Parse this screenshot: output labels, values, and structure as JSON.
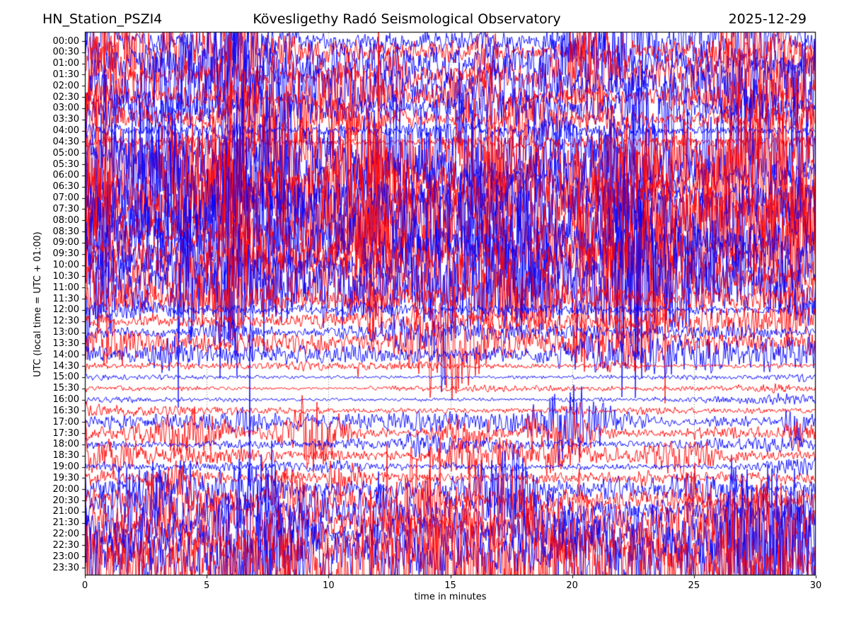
{
  "chart_data": {
    "type": "line",
    "subtype": "helicorder-dayplot",
    "title_left": "HN_Station_PSZI4",
    "title_center": "Kövesligethy Radó Seismological Observatory",
    "title_right": "2025-12-29",
    "xlabel": "time in minutes",
    "ylabel": "UTC (local time = UTC + 01:00)",
    "xlim": [
      0,
      30
    ],
    "x_ticks": [
      0,
      5,
      10,
      15,
      20,
      25,
      30
    ],
    "minutes_per_row": 30,
    "grid": {
      "vertical_minutes": [
        5,
        10,
        15,
        20,
        25
      ],
      "style": "dotted",
      "color": "#777777"
    },
    "legend": "none",
    "colors": {
      "blue": "#0000ff",
      "red": "#ff0000",
      "frame": "#000000"
    },
    "amplitude_units": "relative trace half-amplitude in units of row spacing",
    "rows": [
      {
        "time": "00:00",
        "color": "blue",
        "amplitude": 1.3,
        "bursty": true
      },
      {
        "time": "00:30",
        "color": "red",
        "amplitude": 1.1,
        "bursty": true
      },
      {
        "time": "01:00",
        "color": "blue",
        "amplitude": 1.45,
        "bursty": true
      },
      {
        "time": "01:30",
        "color": "red",
        "amplitude": 1.45,
        "bursty": true
      },
      {
        "time": "02:00",
        "color": "blue",
        "amplitude": 1.4,
        "bursty": true
      },
      {
        "time": "02:30",
        "color": "red",
        "amplitude": 1.25,
        "bursty": true
      },
      {
        "time": "03:00",
        "color": "blue",
        "amplitude": 1.2,
        "bursty": true
      },
      {
        "time": "03:30",
        "color": "red",
        "amplitude": 0.9,
        "bursty": true
      },
      {
        "time": "04:00",
        "color": "blue",
        "amplitude": 0.65,
        "bursty": false
      },
      {
        "time": "04:30",
        "color": "red",
        "amplitude": 0.35,
        "bursty": false
      },
      {
        "time": "05:00",
        "color": "blue",
        "amplitude": 1.8,
        "bursty": true
      },
      {
        "time": "05:30",
        "color": "red",
        "amplitude": 1.85,
        "bursty": true
      },
      {
        "time": "06:00",
        "color": "blue",
        "amplitude": 2.0,
        "bursty": true
      },
      {
        "time": "06:30",
        "color": "red",
        "amplitude": 2.0,
        "bursty": true
      },
      {
        "time": "07:00",
        "color": "blue",
        "amplitude": 2.05,
        "bursty": true
      },
      {
        "time": "07:30",
        "color": "red",
        "amplitude": 2.05,
        "bursty": true
      },
      {
        "time": "08:00",
        "color": "blue",
        "amplitude": 2.15,
        "bursty": true
      },
      {
        "time": "08:30",
        "color": "red",
        "amplitude": 2.15,
        "bursty": true
      },
      {
        "time": "09:00",
        "color": "blue",
        "amplitude": 2.2,
        "bursty": true
      },
      {
        "time": "09:30",
        "color": "red",
        "amplitude": 2.2,
        "bursty": true
      },
      {
        "time": "10:00",
        "color": "blue",
        "amplitude": 2.15,
        "bursty": true
      },
      {
        "time": "10:30",
        "color": "red",
        "amplitude": 2.0,
        "bursty": true
      },
      {
        "time": "11:00",
        "color": "blue",
        "amplitude": 1.85,
        "bursty": true
      },
      {
        "time": "11:30",
        "color": "red",
        "amplitude": 1.5,
        "bursty": true
      },
      {
        "time": "12:00",
        "color": "blue",
        "amplitude": 0.55,
        "bursty": false
      },
      {
        "time": "12:30",
        "color": "red",
        "amplitude": 0.75,
        "bursty": true
      },
      {
        "time": "13:00",
        "color": "blue",
        "amplitude": 0.6,
        "bursty": false
      },
      {
        "time": "13:30",
        "color": "red",
        "amplitude": 0.8,
        "bursty": true
      },
      {
        "time": "14:00",
        "color": "blue",
        "amplitude": 0.45,
        "bursty": true
      },
      {
        "time": "14:30",
        "color": "red",
        "amplitude": 0.3,
        "bursty": false
      },
      {
        "time": "15:00",
        "color": "blue",
        "amplitude": 0.22,
        "bursty": false
      },
      {
        "time": "15:30",
        "color": "red",
        "amplitude": 0.16,
        "bursty": false
      },
      {
        "time": "16:00",
        "color": "blue",
        "amplitude": 0.24,
        "bursty": false
      },
      {
        "time": "16:30",
        "color": "red",
        "amplitude": 0.38,
        "bursty": false
      },
      {
        "time": "17:00",
        "color": "blue",
        "amplitude": 0.5,
        "bursty": true
      },
      {
        "time": "17:30",
        "color": "red",
        "amplitude": 0.55,
        "bursty": true
      },
      {
        "time": "18:00",
        "color": "blue",
        "amplitude": 0.4,
        "bursty": false
      },
      {
        "time": "18:30",
        "color": "red",
        "amplitude": 0.45,
        "bursty": true
      },
      {
        "time": "19:00",
        "color": "blue",
        "amplitude": 0.4,
        "bursty": false
      },
      {
        "time": "19:30",
        "color": "red",
        "amplitude": 0.6,
        "bursty": true
      },
      {
        "time": "20:00",
        "color": "blue",
        "amplitude": 0.75,
        "bursty": true
      },
      {
        "time": "20:30",
        "color": "red",
        "amplitude": 1.0,
        "bursty": true
      },
      {
        "time": "21:00",
        "color": "blue",
        "amplitude": 0.85,
        "bursty": true
      },
      {
        "time": "21:30",
        "color": "red",
        "amplitude": 1.25,
        "bursty": true
      },
      {
        "time": "22:00",
        "color": "blue",
        "amplitude": 1.45,
        "bursty": true
      },
      {
        "time": "22:30",
        "color": "red",
        "amplitude": 1.9,
        "bursty": true
      },
      {
        "time": "23:00",
        "color": "blue",
        "amplitude": 1.95,
        "bursty": true
      },
      {
        "time": "23:30",
        "color": "red",
        "amplitude": 2.1,
        "bursty": true
      }
    ]
  }
}
